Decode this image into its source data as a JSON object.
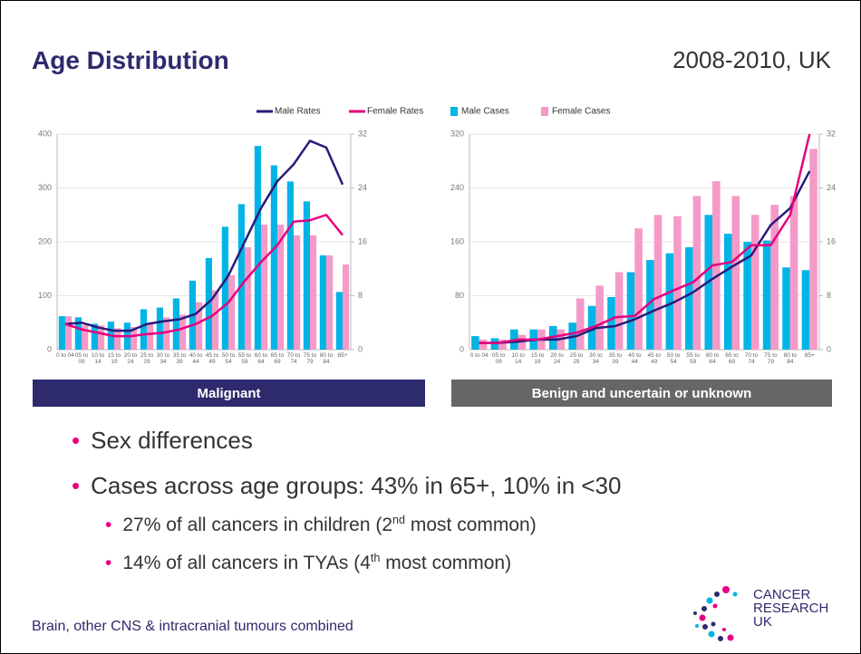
{
  "header": {
    "title": "Age Distribution",
    "period": "2008-2010, UK"
  },
  "chart_data": [
    {
      "type": "bar",
      "subtitle": "Malignant",
      "categories": [
        "0 to 04",
        "05 to 09",
        "10 to 14",
        "15 to 19",
        "20 to 24",
        "25 to 29",
        "30 to 34",
        "35 to 39",
        "40 to 44",
        "45 to 49",
        "50 to 54",
        "55 to 59",
        "60 to 64",
        "65 to 69",
        "70 to 74",
        "75 to 79",
        "80 to 84",
        "85+"
      ],
      "ylim": [
        0,
        400
      ],
      "yticks": [
        0,
        100,
        200,
        300,
        400
      ],
      "y2lim": [
        0,
        32
      ],
      "y2ticks": [
        0,
        8,
        16,
        24,
        32
      ],
      "grid": true,
      "series": [
        {
          "name": "Male Cases",
          "color": "#00b4e6",
          "values": [
            62,
            60,
            48,
            52,
            50,
            75,
            78,
            95,
            128,
            170,
            228,
            270,
            378,
            342,
            312,
            275,
            175,
            107
          ]
        },
        {
          "name": "Female Cases",
          "color": "#f49ac8",
          "values": [
            62,
            45,
            45,
            40,
            42,
            48,
            60,
            65,
            88,
            110,
            138,
            190,
            232,
            232,
            212,
            212,
            175,
            158
          ]
        },
        {
          "name": "Male Rates",
          "type": "line",
          "axis": "y2",
          "color": "#2b1a7a",
          "values": [
            3.8,
            4.0,
            3.3,
            2.8,
            2.8,
            3.8,
            4.2,
            4.5,
            5.3,
            7.5,
            11,
            16,
            21,
            25,
            27.5,
            31,
            30,
            24.5
          ]
        },
        {
          "name": "Female Rates",
          "type": "line",
          "axis": "y2",
          "color": "#e6007e",
          "values": [
            3.8,
            3.0,
            2.5,
            2.0,
            2.0,
            2.3,
            2.5,
            3.0,
            3.8,
            5.0,
            7.0,
            10.2,
            13,
            15.5,
            19,
            19.2,
            20,
            17
          ]
        }
      ]
    },
    {
      "type": "bar",
      "subtitle": "Benign and uncertain or unknown",
      "categories": [
        "0 to 04",
        "05 to 09",
        "10 to 14",
        "15 to 19",
        "20 to 24",
        "25 to 29",
        "30 to 34",
        "35 to 39",
        "40 to 44",
        "45 to 49",
        "50 to 54",
        "55 to 59",
        "60 to 64",
        "65 to 69",
        "70 to 74",
        "75 to 79",
        "80 to 84",
        "85+"
      ],
      "ylim": [
        0,
        320
      ],
      "yticks": [
        0,
        80,
        160,
        240,
        320
      ],
      "y2lim": [
        0,
        32
      ],
      "y2ticks": [
        0,
        8,
        16,
        24,
        32
      ],
      "grid": true,
      "series": [
        {
          "name": "Male Cases",
          "color": "#00b4e6",
          "values": [
            20,
            17,
            30,
            30,
            35,
            40,
            65,
            78,
            115,
            133,
            143,
            152,
            200,
            172,
            160,
            162,
            122,
            118
          ]
        },
        {
          "name": "Female Cases",
          "color": "#f49ac8",
          "values": [
            15,
            15,
            22,
            30,
            30,
            76,
            95,
            115,
            180,
            200,
            198,
            228,
            250,
            228,
            200,
            215,
            228,
            298
          ]
        },
        {
          "name": "Male Rates",
          "type": "line",
          "axis": "y2",
          "color": "#2b1a7a",
          "values": [
            1.0,
            1.0,
            1.2,
            1.5,
            1.5,
            2.0,
            3.2,
            3.5,
            4.5,
            5.8,
            7.0,
            8.5,
            10.5,
            12.3,
            14,
            18.5,
            21,
            26.5
          ]
        },
        {
          "name": "Female Rates",
          "type": "line",
          "axis": "y2",
          "color": "#e6007e",
          "values": [
            1.0,
            1.0,
            1.5,
            1.5,
            2.0,
            2.5,
            3.5,
            4.8,
            5.0,
            7.5,
            8.8,
            10,
            12.5,
            13,
            15.5,
            15.5,
            20,
            32
          ]
        }
      ]
    }
  ],
  "bullets": [
    {
      "text": "Sex differences"
    },
    {
      "text": "Cases across age groups: 43% in 65+, 10% in <30"
    }
  ],
  "sub_bullets": [
    {
      "text": "27% of all cancers in children (2",
      "sup": "nd",
      "after": " most common)"
    },
    {
      "text": "14% of all cancers in TYAs (4",
      "sup": "th",
      "after": " most common)"
    }
  ],
  "footer": "Brain, other CNS & intracranial tumours combined",
  "logo": [
    "CANCER",
    "RESEARCH",
    "UK"
  ]
}
